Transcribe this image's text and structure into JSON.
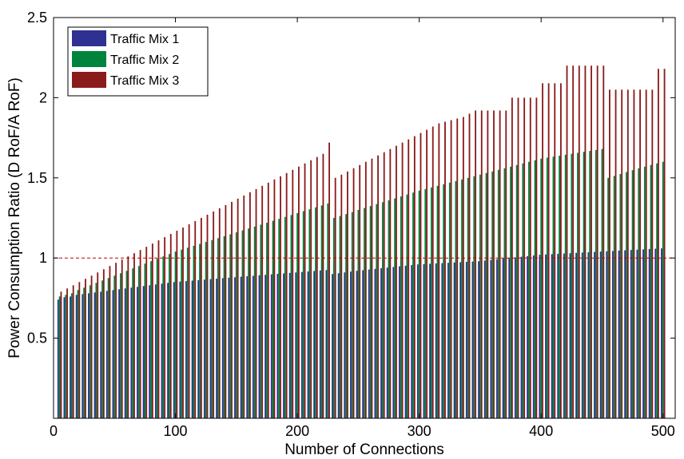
{
  "chart_data": {
    "type": "bar",
    "xlabel": "Number of Connections",
    "ylabel": "Power Consumption Ratio (D RoF/A RoF)",
    "xlim": [
      0,
      510
    ],
    "ylim": [
      0,
      2.5
    ],
    "xticks": [
      0,
      100,
      200,
      300,
      400,
      500
    ],
    "yticks": [
      0.5,
      1,
      1.5,
      2,
      2.5
    ],
    "reference_line": {
      "y": 1,
      "style": "dashed",
      "color": "#c00000"
    },
    "legend_position": "top-left",
    "grid": false,
    "x": [
      5,
      10,
      15,
      20,
      25,
      30,
      35,
      40,
      45,
      50,
      55,
      60,
      65,
      70,
      75,
      80,
      85,
      90,
      95,
      100,
      105,
      110,
      115,
      120,
      125,
      130,
      135,
      140,
      145,
      150,
      155,
      160,
      165,
      170,
      175,
      180,
      185,
      190,
      195,
      200,
      205,
      210,
      215,
      220,
      225,
      230,
      235,
      240,
      245,
      250,
      255,
      260,
      265,
      270,
      275,
      280,
      285,
      290,
      295,
      300,
      305,
      310,
      315,
      320,
      325,
      330,
      335,
      340,
      345,
      350,
      355,
      360,
      365,
      370,
      375,
      380,
      385,
      390,
      395,
      400,
      405,
      410,
      415,
      420,
      425,
      430,
      435,
      440,
      445,
      450,
      455,
      460,
      465,
      470,
      475,
      480,
      485,
      490,
      495,
      500
    ],
    "series": [
      {
        "name": "Traffic Mix 1",
        "color": "#2e3192",
        "values": [
          0.74,
          0.755,
          0.76,
          0.77,
          0.775,
          0.78,
          0.785,
          0.79,
          0.795,
          0.8,
          0.805,
          0.81,
          0.815,
          0.82,
          0.825,
          0.83,
          0.835,
          0.84,
          0.845,
          0.85,
          0.853,
          0.856,
          0.859,
          0.862,
          0.865,
          0.868,
          0.871,
          0.874,
          0.877,
          0.88,
          0.883,
          0.886,
          0.889,
          0.892,
          0.895,
          0.898,
          0.901,
          0.904,
          0.907,
          0.91,
          0.913,
          0.916,
          0.919,
          0.922,
          0.925,
          0.9,
          0.905,
          0.91,
          0.915,
          0.92,
          0.924,
          0.928,
          0.932,
          0.936,
          0.94,
          0.944,
          0.948,
          0.952,
          0.956,
          0.96,
          0.962,
          0.964,
          0.966,
          0.968,
          0.97,
          0.972,
          0.974,
          0.976,
          0.978,
          0.98,
          0.984,
          0.988,
          0.992,
          0.996,
          1.0,
          1.004,
          1.008,
          1.012,
          1.016,
          1.02,
          1.022,
          1.024,
          1.026,
          1.028,
          1.03,
          1.032,
          1.034,
          1.036,
          1.038,
          1.04,
          1.042,
          1.044,
          1.046,
          1.048,
          1.05,
          1.052,
          1.054,
          1.056,
          1.058,
          1.06
        ]
      },
      {
        "name": "Traffic Mix 2",
        "color": "#00843d",
        "values": [
          0.76,
          0.77,
          0.78,
          0.8,
          0.815,
          0.83,
          0.845,
          0.86,
          0.875,
          0.89,
          0.905,
          0.92,
          0.935,
          0.95,
          0.965,
          0.98,
          0.995,
          1.01,
          1.025,
          1.04,
          1.052,
          1.064,
          1.076,
          1.088,
          1.1,
          1.112,
          1.124,
          1.136,
          1.148,
          1.16,
          1.172,
          1.184,
          1.196,
          1.208,
          1.22,
          1.232,
          1.244,
          1.256,
          1.268,
          1.28,
          1.292,
          1.304,
          1.316,
          1.328,
          1.34,
          1.25,
          1.262,
          1.274,
          1.286,
          1.3,
          1.312,
          1.324,
          1.336,
          1.348,
          1.36,
          1.372,
          1.384,
          1.396,
          1.408,
          1.42,
          1.43,
          1.44,
          1.45,
          1.46,
          1.47,
          1.48,
          1.49,
          1.5,
          1.51,
          1.52,
          1.53,
          1.54,
          1.55,
          1.56,
          1.57,
          1.58,
          1.59,
          1.6,
          1.61,
          1.62,
          1.626,
          1.632,
          1.638,
          1.644,
          1.65,
          1.656,
          1.662,
          1.668,
          1.674,
          1.68,
          1.5,
          1.512,
          1.524,
          1.536,
          1.548,
          1.56,
          1.57,
          1.58,
          1.59,
          1.6
        ]
      },
      {
        "name": "Traffic Mix 3",
        "color": "#8b1a1a",
        "values": [
          0.79,
          0.81,
          0.83,
          0.85,
          0.87,
          0.89,
          0.91,
          0.93,
          0.95,
          0.97,
          0.99,
          1.01,
          1.03,
          1.05,
          1.07,
          1.09,
          1.11,
          1.13,
          1.15,
          1.17,
          1.19,
          1.21,
          1.23,
          1.25,
          1.27,
          1.29,
          1.31,
          1.33,
          1.35,
          1.37,
          1.39,
          1.41,
          1.43,
          1.45,
          1.47,
          1.49,
          1.51,
          1.53,
          1.55,
          1.57,
          1.59,
          1.61,
          1.63,
          1.65,
          1.72,
          1.5,
          1.52,
          1.54,
          1.56,
          1.58,
          1.6,
          1.62,
          1.64,
          1.66,
          1.68,
          1.7,
          1.72,
          1.74,
          1.76,
          1.78,
          1.8,
          1.82,
          1.84,
          1.85,
          1.86,
          1.87,
          1.88,
          1.9,
          1.92,
          1.92,
          1.92,
          1.92,
          1.92,
          1.92,
          2.0,
          2.0,
          2.0,
          2.0,
          2.0,
          2.09,
          2.09,
          2.09,
          2.09,
          2.2,
          2.2,
          2.2,
          2.2,
          2.2,
          2.2,
          2.2,
          2.05,
          2.05,
          2.05,
          2.05,
          2.05,
          2.05,
          2.05,
          2.05,
          2.18,
          2.18
        ]
      }
    ]
  }
}
